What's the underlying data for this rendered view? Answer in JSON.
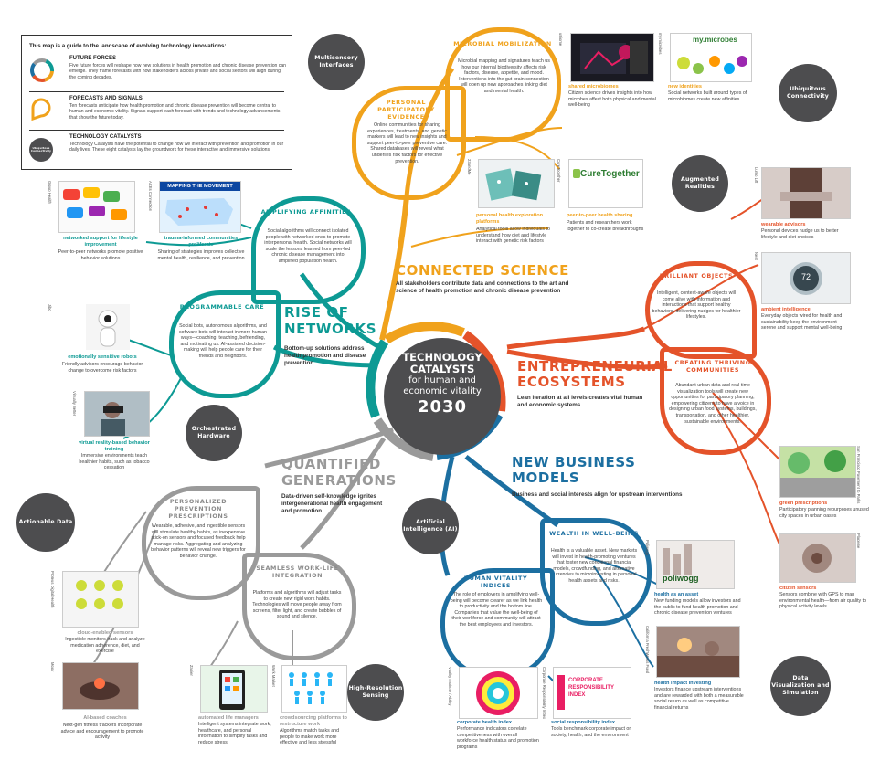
{
  "legend": {
    "intro": "This map is a guide to the landscape of evolving technology innovations:",
    "forces_title": "FUTURE FORCES",
    "forces_text": "Five future forces will reshape how new solutions in health promotion and chronic disease prevention can emerge. They frame forecasts with how stakeholders across private and social sectors will align during the coming decades.",
    "signals_title": "FORECASTS AND SIGNALS",
    "signals_text": "Ten forecasts anticipate how health promotion and chronic disease prevention will become central to human and economic vitality. Signals support each forecast with trends and technology advancements that show the future today.",
    "catalysts_title": "TECHNOLOGY CATALYSTS",
    "catalysts_text": "Technology Catalysts have the potential to change how we interact with prevention and promotion in our daily lives. These eight catalysts lay the groundwork for these interactive and immersive solutions.",
    "catalyst_icon": "Ubiquitous Connectivity"
  },
  "center": {
    "line1": "TECHNOLOGY",
    "line2": "CATALYSTS",
    "line3": "for human and",
    "line4": "economic vitality",
    "year": "2030"
  },
  "catalysts": {
    "multisensory": "Multisensory Interfaces",
    "ubiquitous": "Ubiquitous Connectivity",
    "augmented": "Augmented Realities",
    "orchestrated": "Orchestrated Hardware",
    "actionable": "Actionable Data",
    "ai": "Artificial Intelligence (AI)",
    "high_res": "High-Resolution Sensing",
    "dataviz": "Data Visualization and Simulation"
  },
  "sectors": {
    "connected": {
      "title": "CONNECTED SCIENCE",
      "sub": "All stakeholders contribute data and connections to the art and science of health promotion and chronic disease prevention"
    },
    "networks": {
      "title1": "RISE OF",
      "title2": "NETWORKS",
      "sub": "Bottom-up solutions address health promotion and disease prevention"
    },
    "entrepreneurial": {
      "title1": "ENTREPRENEURIAL",
      "title2": "ECOSYSTEMS",
      "sub": "Lean iteration at all levels creates vital human and economic systems"
    },
    "quantified": {
      "title1": "QUANTIFIED",
      "title2": "GENERATIONS",
      "sub": "Data-driven self-knowledge ignites intergenerational health engagement and promotion"
    },
    "newbusiness": {
      "title1": "NEW BUSINESS",
      "title2": "MODELS",
      "sub": "Business and social interests align for upstream interventions"
    }
  },
  "lobes": {
    "microbial": {
      "title": "MICROBIAL MOBILIZATION",
      "text": "Microbial mapping and signatures teach us how our internal biodiversity affects risk factors, disease, appetite, and mood. Interventions into the gut-brain connection will open up new approaches linking diet and mental health."
    },
    "participatory": {
      "title": "PERSONAL PARTICIPATORY EVIDENCE",
      "text": "Online communities for sharing experiences, treatments, and genetic markers will lead to new insights and support peer-to-peer preventive care. Shared databases will reveal what underlies risk factors for effective prevention."
    },
    "amplifying": {
      "title": "AMPLIFYING AFFINITIES",
      "text": "Social algorithms will connect isolated people with networked ones to promote interpersonal health. Social networks will scale the lessons learned from peer-led chronic disease management into amplified population health."
    },
    "programmable": {
      "title": "PROGRAMMABLE CARE",
      "text": "Social bots, autonomous algorithms, and software bots will interact in more human ways—coaching, teaching, befriending, and motivating us. AI-assisted decision-making will help people care for their friends and neighbors."
    },
    "brilliant": {
      "title": "BRILLIANT OBJECTS",
      "text": "Intelligent, context-aware objects will come alive with information and interactions that support healthy behaviors, delivering nudges for healthier lifestyles."
    },
    "thriving": {
      "title": "CREATING THRIVING COMMUNITIES",
      "text": "Abundant urban data and real-time visualization tools will create new opportunities for participatory planning, empowering citizens to have a voice in designing urban food systems, buildings, transportation, and other healthier, sustainable environments."
    },
    "personalized": {
      "title": "PERSONALIZED PREVENTION PRESCRIPTIONS",
      "text": "Wearable, adhesive, and ingestible sensors will stimulate healthy habits, as inexpensive stick-on sensors and focused feedback help manage risks. Aggregating and analyzing behavior patterns will reveal new triggers for behavior change."
    },
    "seamless": {
      "title": "SEAMLESS WORK-LIFE INTEGRATION",
      "text": "Platforms and algorithms will adjust tasks to create new rigid work habits. Technologies will move people away from screens, filter light, and create bubbles of sound and silence."
    },
    "wealth": {
      "title": "WEALTH IN WELL-BEING",
      "text": "Health is a valuable asset. New markets will invest in health-promoting ventures that foster new conditional financial models, crowdfunding, and alternative currencies to microinvesting in personal health assets and risks."
    },
    "vitality": {
      "title": "HUMAN VITALITY INDICES",
      "text": "The role of employers in amplifying well-being will become clearer as we link health to productivity and the bottom line. Companies that value the well-being of their workforce and community will attract the best employees and investors."
    }
  },
  "signals": {
    "shared_microbiomes": {
      "title": "shared microbiomes",
      "text": "Citizen science drives insights into how microbes affect both physical and mental well-being",
      "src": "uBiome"
    },
    "new_identities": {
      "title": "new identities",
      "text": "Social networks built around types of microbiomes create new affinities",
      "src": "my.microbes",
      "logo": "my.microbes"
    },
    "health_exploration": {
      "title": "personal health exploration platforms",
      "text": "Analytical tools allow individuals to understand how diet and lifestyle interact with genetic risk factors",
      "src": "23andMe"
    },
    "peer_sharing": {
      "title": "peer-to-peer health sharing",
      "text": "Patients and researchers work together to co-create breakthroughs",
      "src": "CureTogether",
      "logo": "CureTogether"
    },
    "networked_support": {
      "title": "networked support for lifestyle improvement",
      "text": "Peer-to-peer networks promote positive behavior solutions",
      "src": "Group Health"
    },
    "trauma": {
      "title": "trauma-informed communities proliferate",
      "text": "Sharing of strategies improves collective mental health, resilience, and prevention",
      "src": "ACEs Connection",
      "banner": "MAPPING THE MOVEMENT"
    },
    "robots": {
      "title": "emotionally sensitive robots",
      "text": "Friendly advisors encourage behavior change to overcome risk factors",
      "src": "Jibo"
    },
    "vr": {
      "title": "virtual reality-based behavior training",
      "text": "Immersive environments teach healthier habits, such as tobacco cessation",
      "src": "Virtually Better"
    },
    "wearable_advisors": {
      "title": "wearable advisors",
      "text": "Personal devices nudge us to better lifestyle and diet choices",
      "src": "Lumo Lift"
    },
    "ambient": {
      "title": "ambient intelligence",
      "text": "Everyday objects wired for health and sustainability keep the environment serene and support mental well-being",
      "src": "Nest",
      "value": "72"
    },
    "green_rx": {
      "title": "green prescriptions",
      "text": "Participatory planning repurposes unused city spaces in urban oases",
      "src": "San Francisco Pavement to Parks"
    },
    "citizen_sensors": {
      "title": "citizen sensors",
      "text": "Sensors combine with GPS to map environmental health—from air quality to physical activity levels",
      "src": "Placeme"
    },
    "cloud_sensors": {
      "title": "cloud-enabled sensors",
      "text": "Ingestible monitors track and analyze medication adherence, diet, and exercise",
      "src": "Proteus Digital Health"
    },
    "ai_coaches": {
      "title": "AI-based coaches",
      "text": "Next-gen fitness trackers incorporate advice and encouragement to promote activity",
      "src": "Moov"
    },
    "life_managers": {
      "title": "automated life managers",
      "text": "Intelligent systems integrate work, healthcare, and personal information to simplify tasks and reduce stress",
      "src": "Zapier"
    },
    "crowdsourcing": {
      "title": "crowdsourcing platforms to restructure work",
      "text": "Algorithms match tasks and people to make work more effective and less stressful",
      "src": "Work Market"
    },
    "health_asset": {
      "title": "health as an asset",
      "text": "New funding models allow investors and the public to fund health promotion and chronic disease prevention ventures",
      "src": "Poliwogg",
      "logo": "poliwogg"
    },
    "impact_investing": {
      "title": "health impact investing",
      "text": "Investors finance upstream interventions and are rewarded with both a measurable social return as well as competitive financial returns",
      "src": "California FreshWorks Fund"
    },
    "health_index": {
      "title": "corporate health index",
      "text": "Performance indicators correlate competitiveness with overall workforce health status and promotion programs",
      "src": "Vitality Institute / Ability"
    },
    "responsibility": {
      "title": "social responsibility index",
      "text": "Tools benchmark corporate impact on society, health, and the environment",
      "src": "Corporate Responsibility Index",
      "logo1": "CORPORATE",
      "logo2": "RESPONSIBILITY",
      "logo3": "INDEX"
    }
  },
  "colors": {
    "orange": "#f0a21c",
    "red": "#e4532a",
    "teal": "#0d9a94",
    "gray": "#9a9a9a",
    "blue": "#1c6fa1",
    "dark": "#4d4d4f"
  }
}
